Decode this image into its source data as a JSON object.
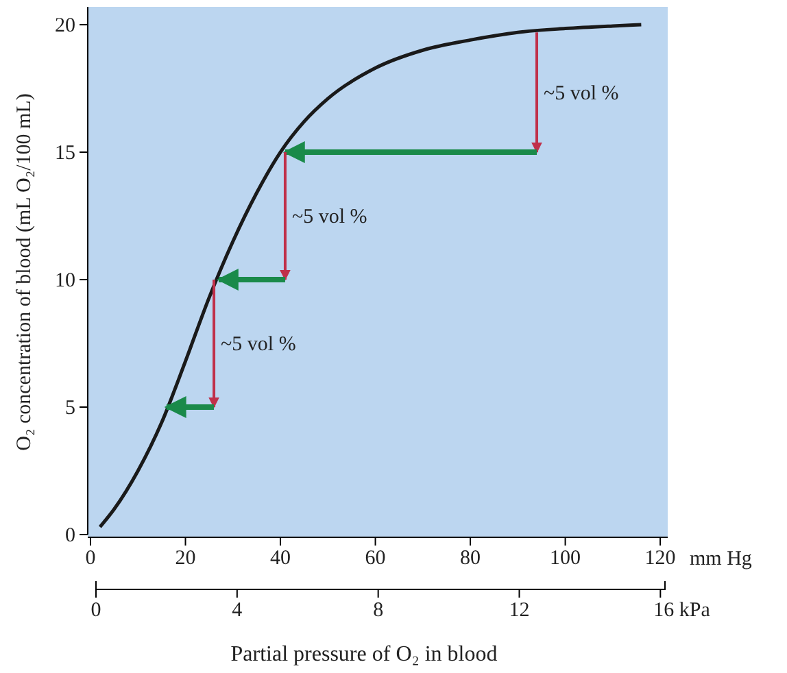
{
  "chart_data": {
    "type": "line",
    "ylabel": "O₂ concentration of blood (mL O₂/100 mL)",
    "xlabel": "mm Hg",
    "x2label": "Partial pressure of O₂ in blood",
    "xlim": [
      0,
      121
    ],
    "xticks": [
      0,
      20,
      40,
      60,
      80,
      100,
      120
    ],
    "x2lim": [
      0,
      16.13
    ],
    "x2ticks": [
      0,
      4,
      8,
      12,
      {
        "value": 16,
        "label": "16 kPa"
      }
    ],
    "ylim": [
      0,
      20.7
    ],
    "yticks": [
      0,
      5,
      10,
      15,
      20
    ],
    "grid": false,
    "series": [
      {
        "color": "#1a1a1a",
        "x": [
          2,
          5,
          10,
          15,
          20,
          25,
          30,
          35,
          40,
          45,
          50,
          60,
          70,
          80,
          90,
          100,
          110,
          116
        ],
        "values": [
          0.3,
          1.0,
          2.5,
          4.4,
          6.8,
          9.3,
          11.5,
          13.4,
          15.0,
          16.2,
          17.1,
          18.3,
          19.0,
          19.4,
          19.7,
          19.85,
          19.95,
          20
        ]
      },
      {
        "color": "#c0304a",
        "x": [
          94,
          94
        ],
        "values": [
          19.7,
          15
        ]
      },
      {
        "color": "#1a8a4a",
        "x": [
          94,
          41
        ],
        "values": [
          15,
          15
        ]
      },
      {
        "color": "#c0304a",
        "x": [
          41,
          41
        ],
        "values": [
          15,
          10
        ]
      },
      {
        "color": "#1a8a4a",
        "x": [
          41,
          27
        ],
        "values": [
          10,
          10
        ]
      },
      {
        "color": "#c0304a",
        "x": [
          26,
          26
        ],
        "values": [
          10,
          5
        ]
      },
      {
        "color": "#1a8a4a",
        "x": [
          26,
          16
        ],
        "values": [
          5,
          5
        ]
      }
    ],
    "annotations": [
      "~5 vol %",
      "~5 vol %",
      "~5 vol %"
    ]
  }
}
